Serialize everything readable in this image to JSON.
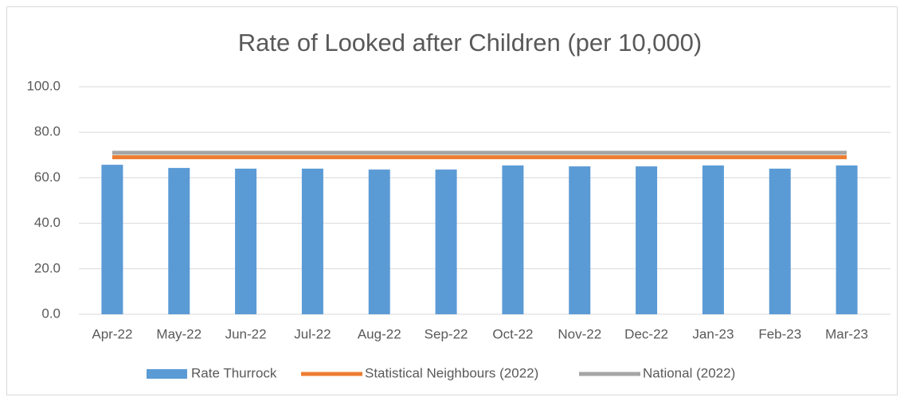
{
  "chart_data": {
    "type": "bar",
    "title": "Rate of Looked after Children (per 10,000)",
    "categories": [
      "Apr-22",
      "May-22",
      "Jun-22",
      "Jul-22",
      "Aug-22",
      "Sep-22",
      "Oct-22",
      "Nov-22",
      "Dec-22",
      "Jan-23",
      "Feb-23",
      "Mar-23"
    ],
    "series": [
      {
        "name": "Rate Thurrock",
        "type": "bar",
        "color": "#5b9bd5",
        "values": [
          65.7,
          64.3,
          64.0,
          64.0,
          63.6,
          63.6,
          65.4,
          65.0,
          65.0,
          65.4,
          64.0,
          65.4
        ]
      },
      {
        "name": "Statistical Neighbours (2022)",
        "type": "line",
        "color": "#ed7d31",
        "values": [
          69,
          69,
          69,
          69,
          69,
          69,
          69,
          69,
          69,
          69,
          69,
          69
        ]
      },
      {
        "name": "National (2022)",
        "type": "line",
        "color": "#a5a5a5",
        "values": [
          71,
          71,
          71,
          71,
          71,
          71,
          71,
          71,
          71,
          71,
          71,
          71
        ]
      }
    ],
    "ylim": [
      0,
      100
    ],
    "yticks": [
      {
        "value": 0,
        "label": "0.0"
      },
      {
        "value": 20,
        "label": "20.0"
      },
      {
        "value": 40,
        "label": "40.0"
      },
      {
        "value": 60,
        "label": "60.0"
      },
      {
        "value": 80,
        "label": "80.0"
      },
      {
        "value": 100,
        "label": "100.0"
      }
    ],
    "grid": true,
    "legend": "bottom"
  }
}
